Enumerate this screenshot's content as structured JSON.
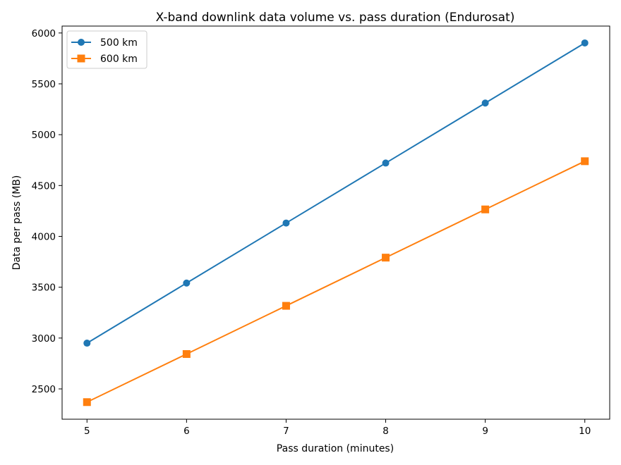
{
  "chart_data": {
    "type": "line",
    "title": "X-band downlink data volume vs. pass duration (Endurosat)",
    "xlabel": "Pass duration (minutes)",
    "ylabel": "Data per pass (MB)",
    "x": [
      5,
      6,
      7,
      8,
      9,
      10
    ],
    "xticks": [
      5,
      6,
      7,
      8,
      9,
      10
    ],
    "yticks": [
      2500,
      3000,
      3500,
      4000,
      4500,
      5000,
      5500,
      6000
    ],
    "xlim": [
      4.75,
      10.25
    ],
    "ylim": [
      2202,
      6068
    ],
    "grid": false,
    "legend_position": "top-left",
    "series": [
      {
        "name": "500 km",
        "values": [
          2950,
          3541,
          4131,
          4721,
          5311,
          5902
        ],
        "color": "#1f77b4",
        "marker": "circle"
      },
      {
        "name": "600 km",
        "values": [
          2370,
          2843,
          3317,
          3791,
          4265,
          4739
        ],
        "color": "#ff7f0e",
        "marker": "square"
      }
    ]
  }
}
